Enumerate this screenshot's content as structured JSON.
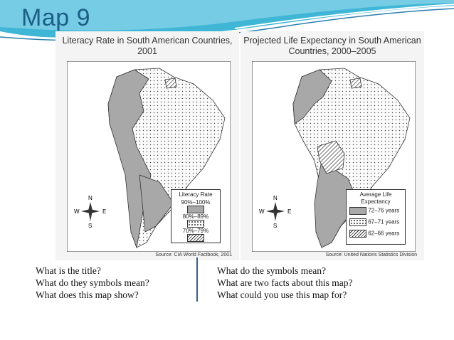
{
  "slide": {
    "title": "Map 9",
    "accent_color": "#1b5e86"
  },
  "left_map": {
    "title": "Literacy Rate in South American Countries, 2001",
    "source": "Source: CIA World Factbook, 2001",
    "compass": {
      "n": "N",
      "s": "S",
      "e": "E",
      "w": "W"
    },
    "legend": {
      "title": "Literacy Rate",
      "items": [
        {
          "label": "90%–100%",
          "pattern": "gray"
        },
        {
          "label": "80%–89%",
          "pattern": "dots"
        },
        {
          "label": "70%–79%",
          "pattern": "hatch"
        }
      ]
    }
  },
  "right_map": {
    "title": "Projected Life Expectancy in South American Countries, 2000–2005",
    "source": "Source: United Nations Statistics Division",
    "compass": {
      "n": "N",
      "s": "S",
      "e": "E",
      "w": "W"
    },
    "legend": {
      "title": "Average Life Expectancy",
      "items": [
        {
          "label": "72–76 years",
          "pattern": "gray"
        },
        {
          "label": "67–71 years",
          "pattern": "dots"
        },
        {
          "label": "62–66 years",
          "pattern": "hatch"
        }
      ]
    }
  },
  "questions": {
    "left": [
      "What is the title?",
      "What do they symbols mean?",
      "What does this map show?"
    ],
    "right": [
      "What do the symbols mean?",
      "What are two facts about this map?",
      "What could you  use this map for?"
    ]
  }
}
